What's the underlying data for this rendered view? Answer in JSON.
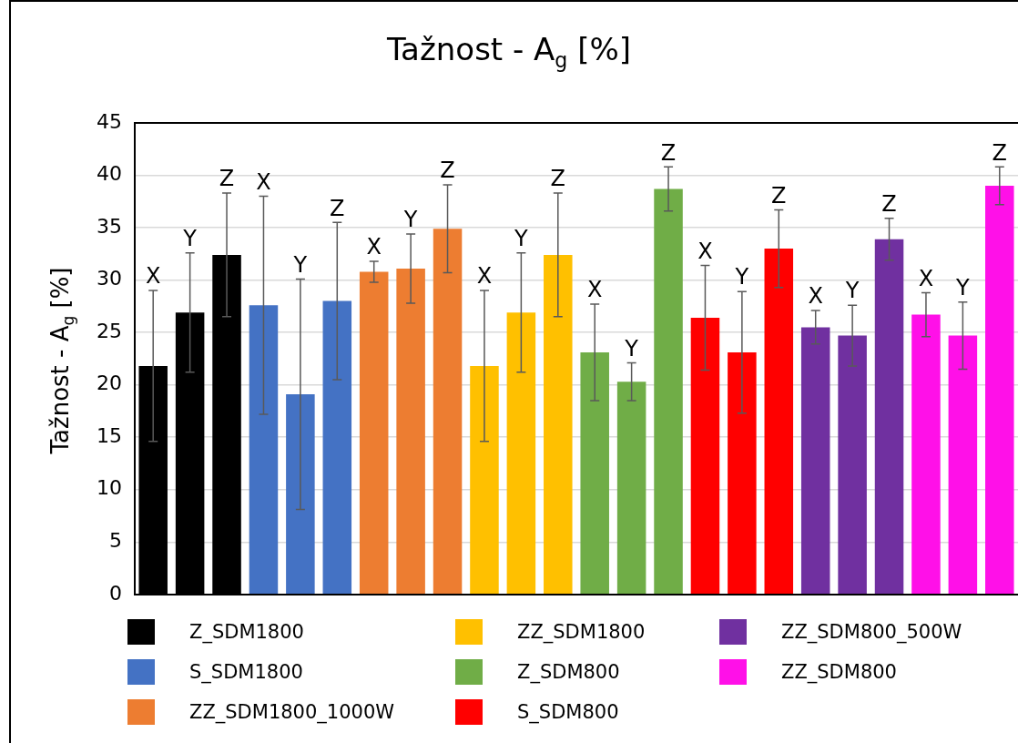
{
  "chart_data": {
    "type": "bar",
    "title": "Tažnost - A$_{g}$ [%]",
    "ylabel": "Tažnost - A$_{g}$ [%]",
    "categories": [
      null,
      null,
      null,
      null,
      null,
      null,
      null,
      null,
      null,
      null,
      null,
      null,
      null,
      null,
      null,
      null,
      null,
      null,
      null,
      null,
      null,
      null,
      null,
      null
    ],
    "ylim": [
      0,
      45
    ],
    "yticks": [
      0,
      5,
      10,
      15,
      20,
      25,
      30,
      35,
      40,
      45
    ],
    "grid": "y",
    "legend": "bottom",
    "annotations": [
      "X",
      "Y",
      "Z",
      "X",
      "Y",
      "Z",
      "X",
      "Y",
      "Z",
      "X",
      "Y",
      "Z",
      "X",
      "Y",
      "Z",
      "X",
      "Y",
      "Z",
      "X",
      "Y",
      "Z",
      "X",
      "Y",
      "Z"
    ],
    "series": [
      {
        "name": "Z_SDM1800",
        "color": "#000000",
        "values": [
          21.8,
          26.9,
          32.4,
          null,
          null,
          null,
          null,
          null,
          null,
          null,
          null,
          null,
          null,
          null,
          null,
          null,
          null,
          null,
          null,
          null,
          null,
          null,
          null,
          null
        ],
        "errors": [
          7.2,
          5.7,
          5.9,
          null,
          null,
          null,
          null,
          null,
          null,
          null,
          null,
          null,
          null,
          null,
          null,
          null,
          null,
          null,
          null,
          null,
          null,
          null,
          null,
          null
        ]
      },
      {
        "name": "S_SDM1800",
        "color": "#4472c4",
        "values": [
          null,
          null,
          null,
          27.6,
          19.1,
          28.0,
          null,
          null,
          null,
          null,
          null,
          null,
          null,
          null,
          null,
          null,
          null,
          null,
          null,
          null,
          null,
          null,
          null,
          null
        ],
        "errors": [
          null,
          null,
          null,
          10.4,
          11.0,
          7.5,
          null,
          null,
          null,
          null,
          null,
          null,
          null,
          null,
          null,
          null,
          null,
          null,
          null,
          null,
          null,
          null,
          null,
          null
        ]
      },
      {
        "name": "ZZ_SDM1800_1000W",
        "color": "#ed7d31",
        "values": [
          null,
          null,
          null,
          null,
          null,
          null,
          30.8,
          31.1,
          34.9,
          null,
          null,
          null,
          null,
          null,
          null,
          null,
          null,
          null,
          null,
          null,
          null,
          null,
          null,
          null
        ],
        "errors": [
          null,
          null,
          null,
          null,
          null,
          null,
          1.0,
          3.3,
          4.2,
          null,
          null,
          null,
          null,
          null,
          null,
          null,
          null,
          null,
          null,
          null,
          null,
          null,
          null,
          null
        ]
      },
      {
        "name": "ZZ_SDM1800",
        "color": "#ffc000",
        "values": [
          null,
          null,
          null,
          null,
          null,
          null,
          null,
          null,
          null,
          21.8,
          26.9,
          32.4,
          null,
          null,
          null,
          null,
          null,
          null,
          null,
          null,
          null,
          null,
          null,
          null
        ],
        "errors": [
          null,
          null,
          null,
          null,
          null,
          null,
          null,
          null,
          null,
          7.2,
          5.7,
          5.9,
          null,
          null,
          null,
          null,
          null,
          null,
          null,
          null,
          null,
          null,
          null,
          null
        ]
      },
      {
        "name": "Z_SDM800",
        "color": "#70ad47",
        "values": [
          null,
          null,
          null,
          null,
          null,
          null,
          null,
          null,
          null,
          null,
          null,
          null,
          23.1,
          20.3,
          38.7,
          null,
          null,
          null,
          null,
          null,
          null,
          null,
          null,
          null
        ],
        "errors": [
          null,
          null,
          null,
          null,
          null,
          null,
          null,
          null,
          null,
          null,
          null,
          null,
          4.6,
          1.8,
          2.1,
          null,
          null,
          null,
          null,
          null,
          null,
          null,
          null,
          null
        ]
      },
      {
        "name": "S_SDM800",
        "color": "#ff0000",
        "values": [
          null,
          null,
          null,
          null,
          null,
          null,
          null,
          null,
          null,
          null,
          null,
          null,
          null,
          null,
          null,
          26.4,
          23.1,
          33.0,
          null,
          null,
          null,
          null,
          null,
          null
        ],
        "errors": [
          null,
          null,
          null,
          null,
          null,
          null,
          null,
          null,
          null,
          null,
          null,
          null,
          null,
          null,
          null,
          5.0,
          5.8,
          3.7,
          null,
          null,
          null,
          null,
          null,
          null
        ]
      },
      {
        "name": "ZZ_SDM800_500W",
        "color": "#7030a0",
        "values": [
          null,
          null,
          null,
          null,
          null,
          null,
          null,
          null,
          null,
          null,
          null,
          null,
          null,
          null,
          null,
          null,
          null,
          null,
          25.5,
          24.7,
          33.9,
          null,
          null,
          null
        ],
        "errors": [
          null,
          null,
          null,
          null,
          null,
          null,
          null,
          null,
          null,
          null,
          null,
          null,
          null,
          null,
          null,
          null,
          null,
          null,
          1.6,
          2.9,
          2.0,
          null,
          null,
          null
        ]
      },
      {
        "name": "ZZ_SDM800",
        "color": "#ff10e8",
        "values": [
          null,
          null,
          null,
          null,
          null,
          null,
          null,
          null,
          null,
          null,
          null,
          null,
          null,
          null,
          null,
          null,
          null,
          null,
          null,
          null,
          null,
          26.7,
          24.7,
          39.0
        ],
        "errors": [
          null,
          null,
          null,
          null,
          null,
          null,
          null,
          null,
          null,
          null,
          null,
          null,
          null,
          null,
          null,
          null,
          null,
          null,
          null,
          null,
          null,
          2.1,
          3.2,
          1.8
        ]
      }
    ]
  }
}
